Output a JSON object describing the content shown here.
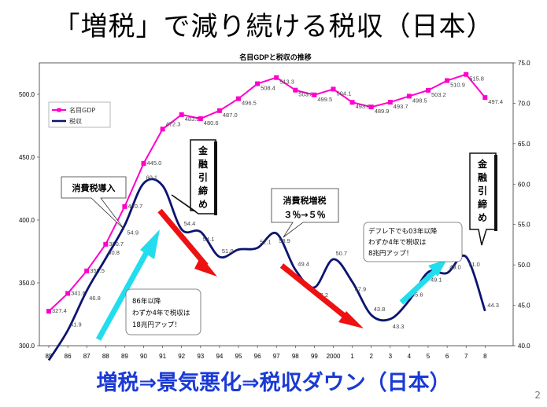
{
  "slide": {
    "title": "「増税」で減り続ける税収（日本）",
    "caption": "増税⇒景気悪化⇒税収ダウン（日本）",
    "page_number": "2"
  },
  "chart_data": {
    "type": "line",
    "title": "名目GDPと税収の推移",
    "categories": [
      "85",
      "86",
      "87",
      "88",
      "89",
      "90",
      "91",
      "92",
      "93",
      "94",
      "95",
      "96",
      "97",
      "98",
      "99",
      "2000",
      "1",
      "2",
      "3",
      "4",
      "5",
      "6",
      "7",
      "8"
    ],
    "series": [
      {
        "name": "名目GDP",
        "axis": "left",
        "color": "#ff00cc",
        "values": [
          327.4,
          341.6,
          359.5,
          380.7,
          410.7,
          445.0,
          472.3,
          483.8,
          480.6,
          487.0,
          496.5,
          508.4,
          513.3,
          503.3,
          499.5,
          504.1,
          493.6,
          489.9,
          493.7,
          498.5,
          503.2,
          510.9,
          515.8,
          497.4
        ],
        "labels": [
          "327.4",
          "341.6",
          "359.5",
          "380.7",
          "410.7",
          "445.0",
          "472.3",
          "483.8",
          "480.6",
          "487.0",
          "496.5",
          "508.4",
          "513.3",
          "503.3",
          "499.5",
          "504.1",
          "493.6",
          "489.9",
          "493.7",
          "498.5",
          "503.2",
          "510.9",
          "515.8",
          "497.4"
        ]
      },
      {
        "name": "税収",
        "axis": "right",
        "color": "#0b1470",
        "values": [
          38.2,
          41.9,
          46.8,
          50.8,
          54.9,
          60.1,
          59.8,
          54.4,
          54.1,
          51.0,
          51.9,
          52.1,
          53.9,
          49.4,
          47.2,
          50.7,
          47.9,
          43.8,
          43.3,
          45.6,
          49.1,
          49.0,
          51.0,
          44.3
        ],
        "labels": [
          "",
          "41.9",
          "46.8",
          "50.8",
          "54.9",
          "60.1",
          "",
          "54.4",
          "54.1",
          "51.0",
          "",
          "52.1",
          "53.9",
          "49.4",
          "47.2",
          "50.7",
          "47.9",
          "43.8",
          "43.3",
          "45.6",
          "49.1",
          "49.0",
          "51.0",
          "44.3"
        ]
      }
    ],
    "y_left": {
      "ticks": [
        "300.0",
        "350.0",
        "400.0",
        "450.0",
        "500.0"
      ],
      "range": [
        300,
        525
      ]
    },
    "y_right": {
      "ticks": [
        "40.0",
        "45.0",
        "50.0",
        "55.0",
        "60.0",
        "65.0",
        "70.0",
        "75.0"
      ],
      "range": [
        40,
        75
      ]
    },
    "legend_position": "top-left",
    "grid": false
  },
  "callouts": {
    "consumption_tax": "消費税導入",
    "tax_hike_line1": "消費税増税",
    "tax_hike_line2": "３％→５％",
    "tightening_1": "金融引締め",
    "tightening_2": "金融引締め",
    "note_86_line1": "86年以降",
    "note_86_line2": "わずか4年で税収は",
    "note_86_line3": "18兆円アップ！",
    "note_03_line1": "デフレ下でも03年以降",
    "note_03_line2": "わずか4年で税収は",
    "note_03_line3": "8兆円アップ！"
  }
}
